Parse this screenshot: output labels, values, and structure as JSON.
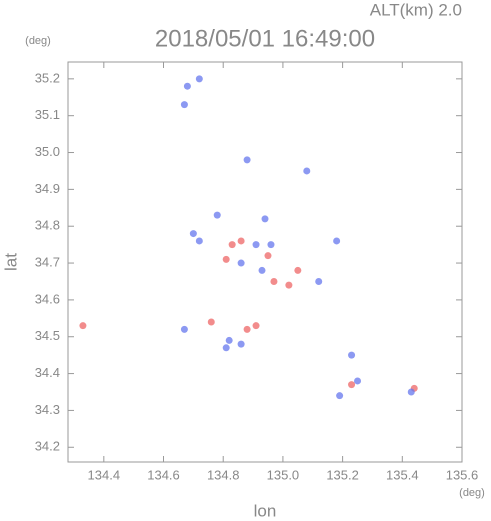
{
  "chart_data": {
    "type": "scatter",
    "title": "2018/05/01 16:49:00",
    "subtitle": "ALT(km) 2.0",
    "y_unit": "(deg)",
    "x_unit": "(deg)",
    "ylabel": "lat",
    "xlabel": "lon",
    "xlim": [
      134.28,
      135.6
    ],
    "ylim": [
      34.16,
      35.3
    ],
    "xticks": [
      134.4,
      134.6,
      134.8,
      {
        "value": 135,
        "label": "135.0"
      },
      135.2,
      135.4,
      135.6
    ],
    "yticks": [
      34.2,
      34.3,
      34.4,
      34.5,
      34.6,
      34.7,
      34.8,
      34.9,
      {
        "value": 35,
        "label": "35.0"
      },
      35.1,
      35.2
    ],
    "series": [
      {
        "color": "#ee6666",
        "x": [
          134.33,
          135.44,
          134.83,
          134.86,
          134.97,
          135.02,
          135.05,
          134.88,
          134.91,
          134.76,
          135.23,
          134.95,
          134.81
        ],
        "y": [
          34.53,
          34.36,
          34.75,
          34.76,
          34.65,
          34.64,
          34.68,
          34.52,
          34.53,
          34.54,
          34.37,
          34.72,
          34.71
        ]
      },
      {
        "color": "#6677ee",
        "x": [
          134.68,
          134.67,
          134.72,
          134.88,
          135.08,
          134.78,
          134.7,
          134.94,
          134.91,
          134.96,
          135.18,
          134.86,
          134.93,
          134.86,
          134.81,
          135.23,
          135.19,
          135.25,
          135.43,
          134.67,
          134.82,
          134.72,
          135.12
        ],
        "y": [
          35.18,
          35.13,
          35.2,
          34.98,
          34.95,
          34.83,
          34.78,
          34.82,
          34.75,
          34.75,
          34.76,
          34.7,
          34.68,
          34.48,
          34.47,
          34.45,
          34.34,
          34.38,
          34.35,
          34.52,
          34.49,
          34.76,
          34.65
        ]
      }
    ]
  }
}
